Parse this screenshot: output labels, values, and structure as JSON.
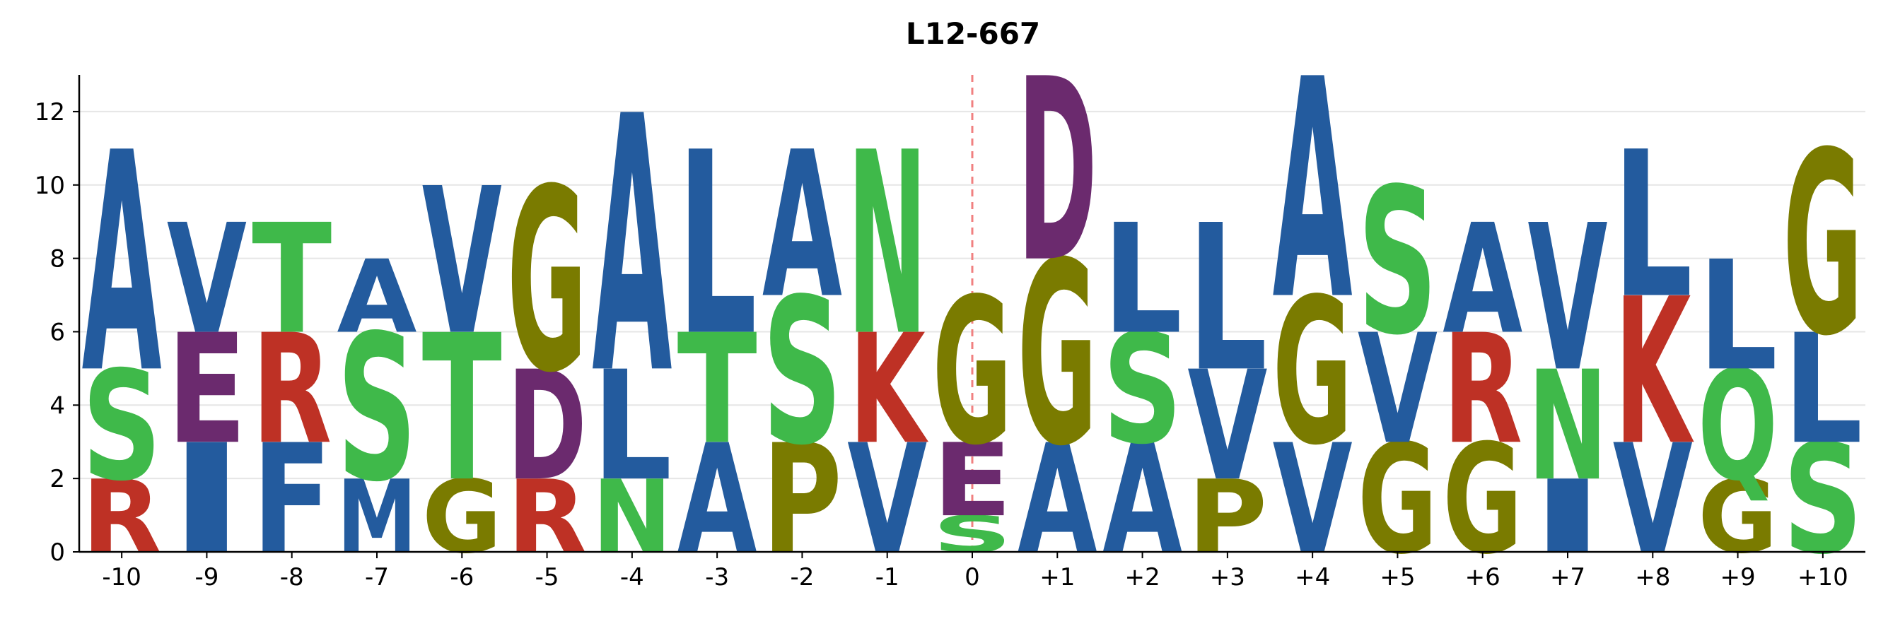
{
  "chart_data": {
    "type": "sequence-logo",
    "title": "L12-667",
    "xlabel": "",
    "ylabel": "",
    "ylim": [
      0,
      13
    ],
    "yticks": [
      0,
      2,
      4,
      6,
      8,
      10,
      12
    ],
    "grid": "horizontal",
    "center_line": {
      "at": "0",
      "color": "#f08080",
      "style": "dashed"
    },
    "positions": [
      "-10",
      "-9",
      "-8",
      "-7",
      "-6",
      "-5",
      "-4",
      "-3",
      "-2",
      "-1",
      "0",
      "+1",
      "+2",
      "+3",
      "+4",
      "+5",
      "+6",
      "+7",
      "+8",
      "+9",
      "+10"
    ],
    "colors": {
      "blue": "#235b9e",
      "purple": "#6b2a6e",
      "red": "#be3125",
      "green": "#3fb94a",
      "olive": "#7a7b00"
    },
    "columns": [
      [
        {
          "letter": "R",
          "value": 2,
          "color": "red"
        },
        {
          "letter": "S",
          "value": 3,
          "color": "green"
        },
        {
          "letter": "A",
          "value": 6,
          "color": "blue"
        }
      ],
      [
        {
          "letter": "I",
          "value": 3,
          "color": "blue"
        },
        {
          "letter": "E",
          "value": 3,
          "color": "purple"
        },
        {
          "letter": "V",
          "value": 3,
          "color": "blue"
        }
      ],
      [
        {
          "letter": "F",
          "value": 3,
          "color": "blue"
        },
        {
          "letter": "R",
          "value": 3,
          "color": "red"
        },
        {
          "letter": "T",
          "value": 3,
          "color": "green"
        }
      ],
      [
        {
          "letter": "M",
          "value": 2,
          "color": "blue"
        },
        {
          "letter": "S",
          "value": 4,
          "color": "green"
        },
        {
          "letter": "A",
          "value": 2,
          "color": "blue"
        }
      ],
      [
        {
          "letter": "G",
          "value": 2,
          "color": "olive"
        },
        {
          "letter": "T",
          "value": 4,
          "color": "green"
        },
        {
          "letter": "V",
          "value": 4,
          "color": "blue"
        }
      ],
      [
        {
          "letter": "R",
          "value": 2,
          "color": "red"
        },
        {
          "letter": "D",
          "value": 3,
          "color": "purple"
        },
        {
          "letter": "G",
          "value": 5,
          "color": "olive"
        }
      ],
      [
        {
          "letter": "N",
          "value": 2,
          "color": "green"
        },
        {
          "letter": "L",
          "value": 3,
          "color": "blue"
        },
        {
          "letter": "A",
          "value": 7,
          "color": "blue"
        }
      ],
      [
        {
          "letter": "A",
          "value": 3,
          "color": "blue"
        },
        {
          "letter": "T",
          "value": 3,
          "color": "green"
        },
        {
          "letter": "L",
          "value": 5,
          "color": "blue"
        }
      ],
      [
        {
          "letter": "P",
          "value": 3,
          "color": "olive"
        },
        {
          "letter": "S",
          "value": 4,
          "color": "green"
        },
        {
          "letter": "A",
          "value": 4,
          "color": "blue"
        }
      ],
      [
        {
          "letter": "V",
          "value": 3,
          "color": "blue"
        },
        {
          "letter": "K",
          "value": 3,
          "color": "red"
        },
        {
          "letter": "N",
          "value": 5,
          "color": "green"
        }
      ],
      [
        {
          "letter": "S",
          "value": 1,
          "color": "green"
        },
        {
          "letter": "E",
          "value": 2,
          "color": "purple"
        },
        {
          "letter": "G",
          "value": 4,
          "color": "olive"
        }
      ],
      [
        {
          "letter": "A",
          "value": 3,
          "color": "blue"
        },
        {
          "letter": "G",
          "value": 5,
          "color": "olive"
        },
        {
          "letter": "D",
          "value": 5,
          "color": "purple"
        }
      ],
      [
        {
          "letter": "A",
          "value": 3,
          "color": "blue"
        },
        {
          "letter": "S",
          "value": 3,
          "color": "green"
        },
        {
          "letter": "L",
          "value": 3,
          "color": "blue"
        }
      ],
      [
        {
          "letter": "P",
          "value": 2,
          "color": "olive"
        },
        {
          "letter": "V",
          "value": 3,
          "color": "blue"
        },
        {
          "letter": "L",
          "value": 4,
          "color": "blue"
        }
      ],
      [
        {
          "letter": "V",
          "value": 3,
          "color": "blue"
        },
        {
          "letter": "G",
          "value": 4,
          "color": "olive"
        },
        {
          "letter": "A",
          "value": 6,
          "color": "blue"
        }
      ],
      [
        {
          "letter": "G",
          "value": 3,
          "color": "olive"
        },
        {
          "letter": "V",
          "value": 3,
          "color": "blue"
        },
        {
          "letter": "S",
          "value": 4,
          "color": "green"
        }
      ],
      [
        {
          "letter": "G",
          "value": 3,
          "color": "olive"
        },
        {
          "letter": "R",
          "value": 3,
          "color": "red"
        },
        {
          "letter": "A",
          "value": 3,
          "color": "blue"
        }
      ],
      [
        {
          "letter": "I",
          "value": 2,
          "color": "blue"
        },
        {
          "letter": "N",
          "value": 3,
          "color": "green"
        },
        {
          "letter": "V",
          "value": 4,
          "color": "blue"
        }
      ],
      [
        {
          "letter": "V",
          "value": 3,
          "color": "blue"
        },
        {
          "letter": "K",
          "value": 4,
          "color": "red"
        },
        {
          "letter": "L",
          "value": 4,
          "color": "blue"
        }
      ],
      [
        {
          "letter": "G",
          "value": 2,
          "color": "olive"
        },
        {
          "letter": "Q",
          "value": 3,
          "color": "green"
        },
        {
          "letter": "L",
          "value": 3,
          "color": "blue"
        }
      ],
      [
        {
          "letter": "S",
          "value": 3,
          "color": "green"
        },
        {
          "letter": "L",
          "value": 3,
          "color": "blue"
        },
        {
          "letter": "G",
          "value": 5,
          "color": "olive"
        }
      ]
    ]
  }
}
